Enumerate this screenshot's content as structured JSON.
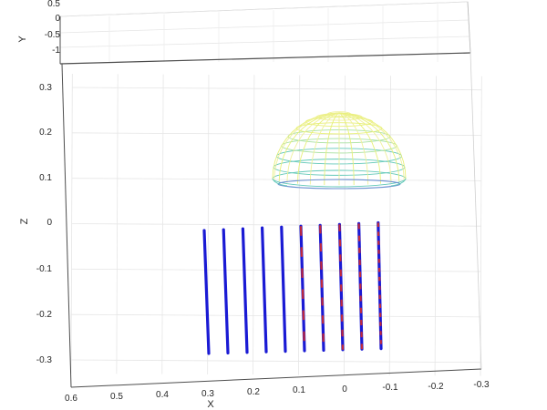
{
  "chart_data": {
    "type": "line",
    "title": "",
    "view": "3d",
    "grid": true,
    "xlabel": "X",
    "ylabel": "Y",
    "zlabel": "Z",
    "xlim": [
      -0.3,
      0.6
    ],
    "ylim": [
      -1,
      0.5
    ],
    "zlim": [
      -0.33,
      0.33
    ],
    "x_ticks": [
      "0.6",
      "0.5",
      "0.4",
      "0.3",
      "0.2",
      "0.1",
      "0",
      "-0.1",
      "-0.2",
      "-0.3"
    ],
    "y_ticks": [
      "0.5",
      "0",
      "-0.5",
      "-1"
    ],
    "z_ticks": [
      "0.3",
      "0.2",
      "0.1",
      "0",
      "-0.1",
      "-0.2",
      "-0.3"
    ],
    "series": [
      {
        "x": [
          0.3,
          0.258,
          0.215,
          0.173,
          0.13,
          0.088,
          0.045,
          0.003,
          -0.04,
          -0.082
        ],
        "z_top": [
          -0.02,
          -0.018,
          -0.016,
          -0.014,
          -0.012,
          -0.01,
          -0.008,
          -0.006,
          -0.004,
          -0.003
        ],
        "z_bottom": [
          -0.29,
          -0.29,
          -0.288,
          -0.288,
          -0.287,
          -0.286,
          -0.284,
          -0.283,
          -0.282,
          -0.28
        ],
        "color": "#1a1ad4",
        "overlay_dash_color": "#d42a2a",
        "overlay_count": [
          0,
          0,
          0,
          0,
          0,
          1,
          2,
          3,
          4,
          5
        ]
      }
    ],
    "surface": {
      "shape": "ellipsoid-cap",
      "x_center": 0.075,
      "x_radius": 0.14,
      "z_base": 0.08,
      "z_top": 0.24,
      "colormap": [
        "#62c8b8",
        "#a8e0a0",
        "#e8f07a",
        "#f0f09a"
      ],
      "base_color": "#6a8fd0"
    }
  }
}
